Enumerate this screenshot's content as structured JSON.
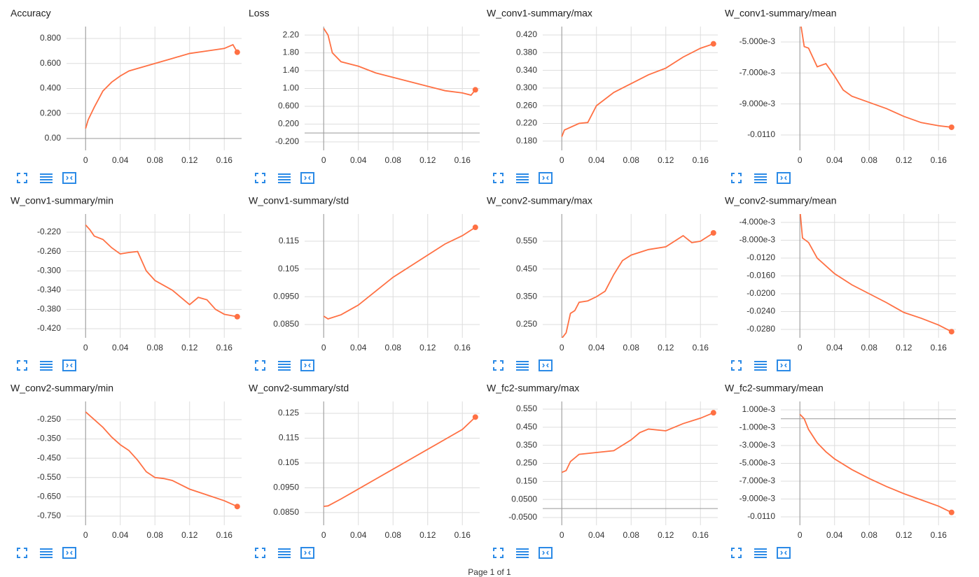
{
  "chart_data": [
    {
      "type": "line",
      "title": "Accuracy",
      "color": "#ff7043",
      "grid": true,
      "x": [
        0,
        0.003,
        0.01,
        0.02,
        0.03,
        0.04,
        0.05,
        0.06,
        0.08,
        0.1,
        0.12,
        0.14,
        0.16,
        0.17,
        0.175
      ],
      "values": [
        0.08,
        0.15,
        0.25,
        0.38,
        0.45,
        0.5,
        0.54,
        0.56,
        0.6,
        0.64,
        0.68,
        0.7,
        0.72,
        0.75,
        0.69
      ],
      "xlim": [
        -0.022,
        0.18
      ],
      "xticks": [
        0,
        0.04,
        0.08,
        0.12,
        0.16
      ],
      "ylim": [
        -0.095,
        0.895
      ],
      "yticks": [
        {
          "value": 0,
          "label": "0.00"
        },
        {
          "value": 0.2,
          "label": "0.200"
        },
        {
          "value": 0.4,
          "label": "0.400"
        },
        {
          "value": 0.6,
          "label": "0.600"
        },
        {
          "value": 0.8,
          "label": "0.800"
        }
      ]
    },
    {
      "type": "line",
      "title": "Loss",
      "color": "#ff7043",
      "grid": true,
      "x": [
        0,
        0.005,
        0.01,
        0.02,
        0.04,
        0.06,
        0.08,
        0.1,
        0.12,
        0.14,
        0.16,
        0.17,
        0.175
      ],
      "values": [
        2.35,
        2.2,
        1.8,
        1.6,
        1.5,
        1.35,
        1.25,
        1.15,
        1.05,
        0.95,
        0.9,
        0.85,
        0.97
      ],
      "xlim": [
        -0.022,
        0.18
      ],
      "xticks": [
        0,
        0.04,
        0.08,
        0.12,
        0.16
      ],
      "ylim": [
        -0.39,
        2.39
      ],
      "yticks": [
        {
          "value": -0.2,
          "label": "-0.200"
        },
        {
          "value": 0.2,
          "label": "0.200"
        },
        {
          "value": 0.6,
          "label": "0.600"
        },
        {
          "value": 1.0,
          "label": "1.00"
        },
        {
          "value": 1.4,
          "label": "1.40"
        },
        {
          "value": 1.8,
          "label": "1.80"
        },
        {
          "value": 2.2,
          "label": "2.20"
        }
      ]
    },
    {
      "type": "line",
      "title": "W_conv1-summary/max",
      "color": "#ff7043",
      "grid": true,
      "x": [
        0,
        0.003,
        0.02,
        0.03,
        0.04,
        0.06,
        0.08,
        0.1,
        0.12,
        0.14,
        0.16,
        0.175
      ],
      "values": [
        0.19,
        0.205,
        0.22,
        0.222,
        0.26,
        0.29,
        0.31,
        0.33,
        0.345,
        0.37,
        0.39,
        0.4
      ],
      "xlim": [
        -0.022,
        0.18
      ],
      "xticks": [
        0,
        0.04,
        0.08,
        0.12,
        0.16
      ],
      "ylim": [
        0.159,
        0.439
      ],
      "yticks": [
        {
          "value": 0.18,
          "label": "0.180"
        },
        {
          "value": 0.22,
          "label": "0.220"
        },
        {
          "value": 0.26,
          "label": "0.260"
        },
        {
          "value": 0.3,
          "label": "0.300"
        },
        {
          "value": 0.34,
          "label": "0.340"
        },
        {
          "value": 0.38,
          "label": "0.380"
        },
        {
          "value": 0.42,
          "label": "0.420"
        }
      ]
    },
    {
      "type": "line",
      "title": "W_conv1-summary/mean",
      "color": "#ff7043",
      "grid": true,
      "x": [
        0,
        0.005,
        0.01,
        0.02,
        0.03,
        0.04,
        0.05,
        0.06,
        0.08,
        0.1,
        0.12,
        0.14,
        0.16,
        0.175
      ],
      "values": [
        -0.0035,
        -0.0053,
        -0.0054,
        -0.0066,
        -0.0064,
        -0.0072,
        -0.0081,
        -0.0085,
        -0.0089,
        -0.0093,
        -0.0098,
        -0.0102,
        -0.0104,
        -0.0105
      ],
      "xlim": [
        -0.022,
        0.18
      ],
      "xticks": [
        0,
        0.04,
        0.08,
        0.12,
        0.16
      ],
      "ylim": [
        -0.01199,
        -0.00401
      ],
      "yticks": [
        {
          "value": -0.011,
          "label": "-0.0110"
        },
        {
          "value": -0.009,
          "label": "-9.000e-3"
        },
        {
          "value": -0.007,
          "label": "-7.000e-3"
        },
        {
          "value": -0.005,
          "label": "-5.000e-3"
        }
      ]
    },
    {
      "type": "line",
      "title": "W_conv1-summary/min",
      "color": "#ff7043",
      "grid": true,
      "x": [
        0,
        0.005,
        0.01,
        0.02,
        0.03,
        0.04,
        0.05,
        0.06,
        0.07,
        0.08,
        0.09,
        0.1,
        0.12,
        0.13,
        0.14,
        0.15,
        0.16,
        0.175
      ],
      "values": [
        -0.205,
        -0.215,
        -0.228,
        -0.235,
        -0.252,
        -0.265,
        -0.262,
        -0.26,
        -0.3,
        -0.32,
        -0.33,
        -0.34,
        -0.37,
        -0.355,
        -0.36,
        -0.38,
        -0.39,
        -0.395
      ],
      "xlim": [
        -0.022,
        0.18
      ],
      "xticks": [
        0,
        0.04,
        0.08,
        0.12,
        0.16
      ],
      "ylim": [
        -0.4388,
        -0.1823
      ],
      "yticks": [
        {
          "value": -0.42,
          "label": "-0.420"
        },
        {
          "value": -0.38,
          "label": "-0.380"
        },
        {
          "value": -0.34,
          "label": "-0.340"
        },
        {
          "value": -0.3,
          "label": "-0.300"
        },
        {
          "value": -0.26,
          "label": "-0.260"
        },
        {
          "value": -0.22,
          "label": "-0.220"
        }
      ]
    },
    {
      "type": "line",
      "title": "W_conv1-summary/std",
      "color": "#ff7043",
      "grid": true,
      "x": [
        0,
        0.005,
        0.02,
        0.04,
        0.06,
        0.08,
        0.1,
        0.12,
        0.14,
        0.16,
        0.175
      ],
      "values": [
        0.088,
        0.087,
        0.0885,
        0.092,
        0.097,
        0.102,
        0.106,
        0.11,
        0.114,
        0.117,
        0.12
      ],
      "xlim": [
        -0.022,
        0.18
      ],
      "xticks": [
        0,
        0.04,
        0.08,
        0.12,
        0.16
      ],
      "ylim": [
        0.0802,
        0.1248
      ],
      "yticks": [
        {
          "value": 0.085,
          "label": "0.0850"
        },
        {
          "value": 0.095,
          "label": "0.0950"
        },
        0.105,
        0.115
      ]
    },
    {
      "type": "line",
      "title": "W_conv2-summary/max",
      "color": "#ff7043",
      "grid": true,
      "x": [
        0,
        0.005,
        0.01,
        0.015,
        0.02,
        0.03,
        0.04,
        0.05,
        0.06,
        0.07,
        0.08,
        0.1,
        0.12,
        0.14,
        0.15,
        0.16,
        0.175
      ],
      "values": [
        0.2,
        0.22,
        0.29,
        0.3,
        0.33,
        0.335,
        0.35,
        0.37,
        0.43,
        0.48,
        0.5,
        0.52,
        0.53,
        0.57,
        0.545,
        0.55,
        0.58
      ],
      "xlim": [
        -0.022,
        0.18
      ],
      "xticks": [
        0,
        0.04,
        0.08,
        0.12,
        0.16
      ],
      "ylim": [
        0.202,
        0.648
      ],
      "yticks": [
        {
          "value": 0.25,
          "label": "0.250"
        },
        {
          "value": 0.35,
          "label": "0.350"
        },
        {
          "value": 0.45,
          "label": "0.450"
        },
        {
          "value": 0.55,
          "label": "0.550"
        }
      ]
    },
    {
      "type": "line",
      "title": "W_conv2-summary/mean",
      "color": "#ff7043",
      "grid": true,
      "x": [
        0,
        0.003,
        0.01,
        0.02,
        0.04,
        0.06,
        0.08,
        0.1,
        0.12,
        0.14,
        0.16,
        0.175
      ],
      "values": [
        -0.001,
        -0.0075,
        -0.0085,
        -0.012,
        -0.0155,
        -0.018,
        -0.02,
        -0.022,
        -0.0242,
        -0.0255,
        -0.027,
        -0.0285
      ],
      "xlim": [
        -0.022,
        0.18
      ],
      "xticks": [
        0,
        0.04,
        0.08,
        0.12,
        0.16
      ],
      "ylim": [
        -0.02988,
        -0.00212
      ],
      "yticks": [
        {
          "value": -0.028,
          "label": "-0.0280"
        },
        {
          "value": -0.024,
          "label": "-0.0240"
        },
        {
          "value": -0.02,
          "label": "-0.0200"
        },
        {
          "value": -0.016,
          "label": "-0.0160"
        },
        {
          "value": -0.012,
          "label": "-0.0120"
        },
        {
          "value": -0.008,
          "label": "-8.000e-3"
        },
        {
          "value": -0.004,
          "label": "-4.000e-3"
        }
      ]
    },
    {
      "type": "line",
      "title": "W_conv2-summary/min",
      "color": "#ff7043",
      "grid": true,
      "x": [
        0,
        0.01,
        0.02,
        0.03,
        0.04,
        0.05,
        0.06,
        0.07,
        0.08,
        0.09,
        0.1,
        0.12,
        0.14,
        0.16,
        0.175
      ],
      "values": [
        -0.21,
        -0.25,
        -0.29,
        -0.34,
        -0.38,
        -0.41,
        -0.46,
        -0.52,
        -0.55,
        -0.555,
        -0.565,
        -0.61,
        -0.64,
        -0.67,
        -0.7
      ],
      "xlim": [
        -0.022,
        0.18
      ],
      "xticks": [
        0,
        0.04,
        0.08,
        0.12,
        0.16
      ],
      "ylim": [
        -0.797,
        -0.156
      ],
      "yticks": [
        {
          "value": -0.75,
          "label": "-0.750"
        },
        {
          "value": -0.65,
          "label": "-0.650"
        },
        {
          "value": -0.55,
          "label": "-0.550"
        },
        {
          "value": -0.45,
          "label": "-0.450"
        },
        {
          "value": -0.35,
          "label": "-0.350"
        },
        {
          "value": -0.25,
          "label": "-0.250"
        }
      ]
    },
    {
      "type": "line",
      "title": "W_conv2-summary/std",
      "color": "#ff7043",
      "grid": true,
      "x": [
        0,
        0.005,
        0.02,
        0.04,
        0.06,
        0.08,
        0.1,
        0.12,
        0.14,
        0.16,
        0.175
      ],
      "values": [
        0.0875,
        0.0877,
        0.0905,
        0.0945,
        0.0985,
        0.1025,
        0.1065,
        0.1105,
        0.1145,
        0.1185,
        0.1235
      ],
      "xlim": [
        -0.022,
        0.18
      ],
      "xticks": [
        0,
        0.04,
        0.08,
        0.12,
        0.16
      ],
      "ylim": [
        0.0799,
        0.1298
      ],
      "yticks": [
        {
          "value": 0.085,
          "label": "0.0850"
        },
        {
          "value": 0.095,
          "label": "0.0950"
        },
        0.105,
        0.115,
        0.125
      ]
    },
    {
      "type": "line",
      "title": "W_fc2-summary/max",
      "color": "#ff7043",
      "grid": true,
      "x": [
        0,
        0.005,
        0.01,
        0.02,
        0.04,
        0.06,
        0.07,
        0.08,
        0.09,
        0.1,
        0.12,
        0.14,
        0.16,
        0.175
      ],
      "values": [
        0.2,
        0.21,
        0.26,
        0.3,
        0.31,
        0.32,
        0.35,
        0.38,
        0.42,
        0.44,
        0.43,
        0.47,
        0.5,
        0.53
      ],
      "xlim": [
        -0.022,
        0.18
      ],
      "xticks": [
        0,
        0.04,
        0.08,
        0.12,
        0.16
      ],
      "ylim": [
        -0.0926,
        0.5926
      ],
      "yticks": [
        {
          "value": -0.05,
          "label": "-0.0500"
        },
        {
          "value": 0.05,
          "label": "0.0500"
        },
        {
          "value": 0.15,
          "label": "0.150"
        },
        {
          "value": 0.25,
          "label": "0.250"
        },
        {
          "value": 0.35,
          "label": "0.350"
        },
        {
          "value": 0.45,
          "label": "0.450"
        },
        {
          "value": 0.55,
          "label": "0.550"
        }
      ]
    },
    {
      "type": "line",
      "title": "W_fc2-summary/mean",
      "color": "#ff7043",
      "grid": true,
      "x": [
        0,
        0.005,
        0.01,
        0.02,
        0.03,
        0.04,
        0.06,
        0.08,
        0.1,
        0.12,
        0.14,
        0.16,
        0.175
      ],
      "values": [
        0.0005,
        0.0,
        -0.0012,
        -0.0027,
        -0.0037,
        -0.0045,
        -0.0057,
        -0.0067,
        -0.0076,
        -0.0084,
        -0.0091,
        -0.0098,
        -0.0105
      ],
      "xlim": [
        -0.022,
        0.18
      ],
      "xticks": [
        0,
        0.04,
        0.08,
        0.12,
        0.16
      ],
      "ylim": [
        -0.01194,
        0.00194
      ],
      "yticks": [
        {
          "value": -0.011,
          "label": "-0.0110"
        },
        {
          "value": -0.009,
          "label": "-9.000e-3"
        },
        {
          "value": -0.007,
          "label": "-7.000e-3"
        },
        {
          "value": -0.005,
          "label": "-5.000e-3"
        },
        {
          "value": -0.003,
          "label": "-3.000e-3"
        },
        {
          "value": -0.001,
          "label": "-1.000e-3"
        },
        {
          "value": 0.001,
          "label": "1.000e-3"
        }
      ]
    }
  ],
  "pagination": "Page 1 of 1"
}
